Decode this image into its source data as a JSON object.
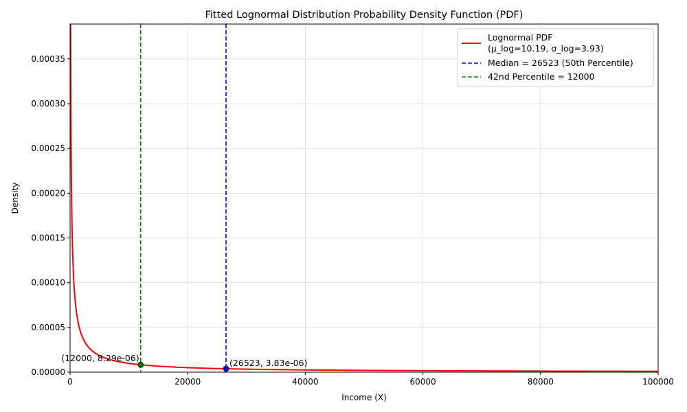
{
  "chart_data": {
    "type": "line",
    "title": "Fitted Lognormal Distribution Probability Density Function (PDF)",
    "xlabel": "Income (X)",
    "ylabel": "Density",
    "xlim": [
      0,
      100000
    ],
    "ylim": [
      0,
      0.000389
    ],
    "grid": true,
    "legend_position": "top-right",
    "x_ticks": [
      0,
      20000,
      40000,
      60000,
      80000,
      100000
    ],
    "x_tick_labels": [
      "0",
      "20000",
      "40000",
      "60000",
      "80000",
      "100000"
    ],
    "y_ticks": [
      0,
      5e-05,
      0.0001,
      0.00015,
      0.0002,
      0.00025,
      0.0003,
      0.00035
    ],
    "y_tick_labels": [
      "0.00000",
      "0.00005",
      "0.00010",
      "0.00015",
      "0.00020",
      "0.00025",
      "0.00030",
      "0.00035"
    ],
    "distribution": {
      "family": "lognormal",
      "mu_log": 10.19,
      "sigma_log": 3.93
    },
    "series": [
      {
        "name": "Lognormal PDF",
        "name_line2": "(μ_log=10.19, σ_log=3.93)",
        "style": "solid",
        "color": "#ff0000",
        "x_range": [
          10,
          100000
        ]
      }
    ],
    "vlines": [
      {
        "name": "Median = 26523 (50th Percentile)",
        "x": 26523,
        "color": "#0000ff",
        "style": "dashed"
      },
      {
        "name": "42nd Percentile = 12000",
        "x": 12000,
        "color": "#008000",
        "style": "dashed"
      }
    ],
    "points": [
      {
        "x": 12000,
        "y": 8.29e-06,
        "label": "(12000, 8.29e-06)",
        "color": "#008000",
        "label_side": "left"
      },
      {
        "x": 26523,
        "y": 3.83e-06,
        "label": "(26523, 3.83e-06)",
        "color": "#0000ff",
        "label_side": "right"
      }
    ]
  }
}
